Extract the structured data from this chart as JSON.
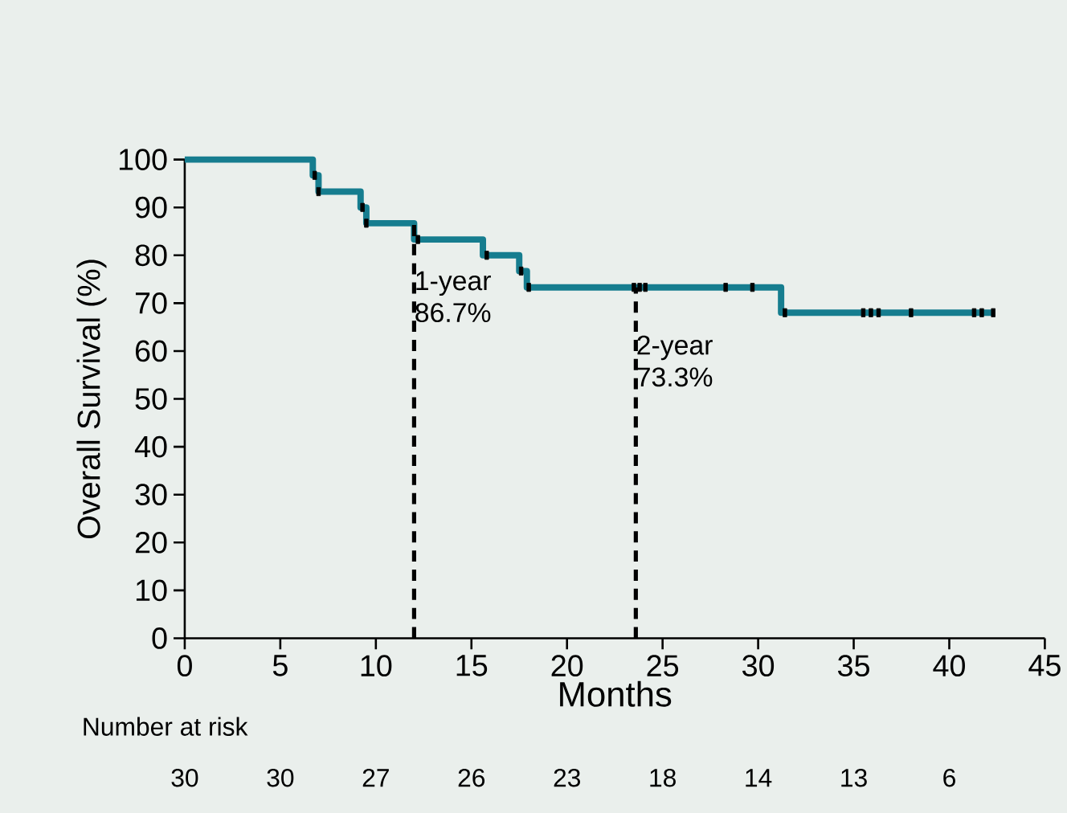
{
  "chart_data": {
    "type": "step",
    "xlabel": "Months",
    "ylabel": "Overall Survival (%)",
    "xlim": [
      0,
      45
    ],
    "xticks": [
      0,
      5,
      10,
      15,
      20,
      25,
      30,
      35,
      40,
      45
    ],
    "ylim": [
      0,
      100
    ],
    "yticks": [
      0,
      10,
      20,
      30,
      40,
      50,
      60,
      70,
      80,
      90,
      100
    ],
    "grid": false,
    "series": [
      {
        "color": "#167d8f",
        "x": [
          0,
          6.7,
          7.0,
          9.2,
          9.5,
          12.0,
          15.6,
          17.5,
          17.9,
          31.2,
          42.4
        ],
        "values": [
          100,
          96.7,
          93.3,
          90.0,
          86.7,
          83.3,
          80.0,
          76.7,
          73.3,
          68.0,
          68.0
        ]
      },
      {
        "type": "scatter",
        "marker": "square",
        "color": "#000000",
        "x": [
          6.8,
          7.0,
          9.3,
          9.5,
          12.2,
          15.8,
          17.6,
          18.0,
          23.5,
          23.8,
          24.1,
          28.3,
          29.7,
          31.4,
          35.5,
          35.9,
          36.3,
          38.0,
          41.3,
          41.7,
          42.3
        ],
        "values": [
          96.7,
          93.3,
          90.0,
          86.7,
          83.3,
          80.0,
          76.7,
          73.3,
          73.3,
          73.3,
          73.3,
          73.3,
          73.3,
          68.0,
          68.0,
          68.0,
          68.0,
          68.0,
          68.0,
          68.0,
          68.0
        ]
      }
    ],
    "ref_lines": [
      {
        "axis": "x",
        "value": 12,
        "label": "1-year 86.7%",
        "color": "#000000",
        "line_style": "dashed"
      },
      {
        "axis": "x",
        "value": 23.6,
        "label": "2-year 73.3%",
        "color": "#000000",
        "line_style": "dashed"
      }
    ],
    "annotations": [
      "Number at risk",
      "30",
      "30",
      "27",
      "26",
      "23",
      "18",
      "14",
      "13",
      "6"
    ]
  }
}
